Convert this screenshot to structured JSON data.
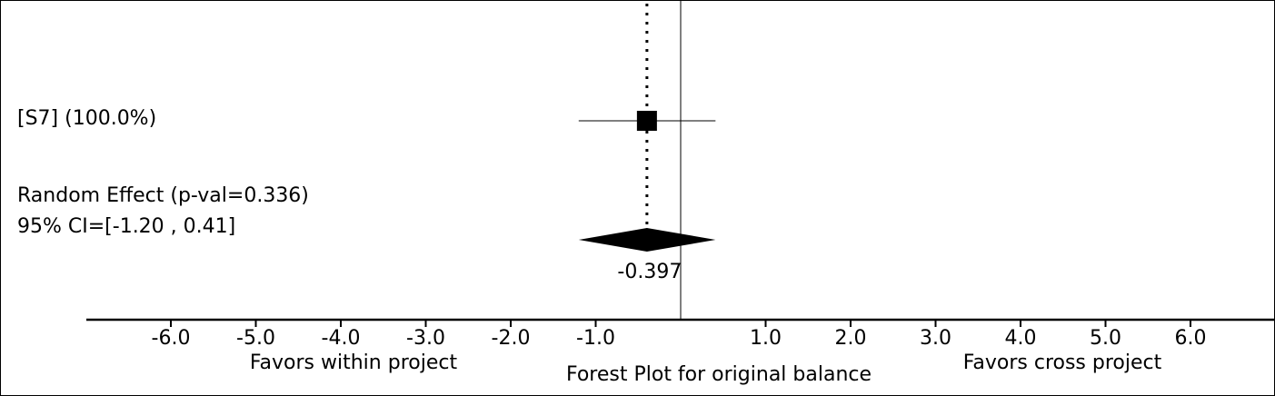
{
  "chart_data": {
    "type": "forest",
    "title": "Forest Plot for original balance",
    "x_axis": {
      "min": -7.0,
      "max": 7.0,
      "ticks": [
        -6,
        -5,
        -4,
        -3,
        -2,
        -1,
        1,
        2,
        3,
        4,
        5,
        6
      ],
      "tick_labels": [
        "-6.0",
        "-5.0",
        "-4.0",
        "-3.0",
        "-2.0",
        "-1.0",
        "1.0",
        "2.0",
        "3.0",
        "4.0",
        "5.0",
        "6.0"
      ],
      "left_label": "Favors within project",
      "right_label": "Favors cross project"
    },
    "studies": [
      {
        "label": "[S7] (100.0%)",
        "effect": -0.397,
        "ci_low": -1.2,
        "ci_high": 0.41,
        "weight_pct": 100.0
      }
    ],
    "summary": {
      "label_line1": "Random Effect (p-val=0.336)",
      "label_line2": "95% CI=[-1.20 , 0.41]",
      "effect": -0.397,
      "effect_label": "-0.397",
      "ci_low": -1.2,
      "ci_high": 0.41,
      "p_value": 0.336
    },
    "reference_line": 0,
    "grid": false
  }
}
